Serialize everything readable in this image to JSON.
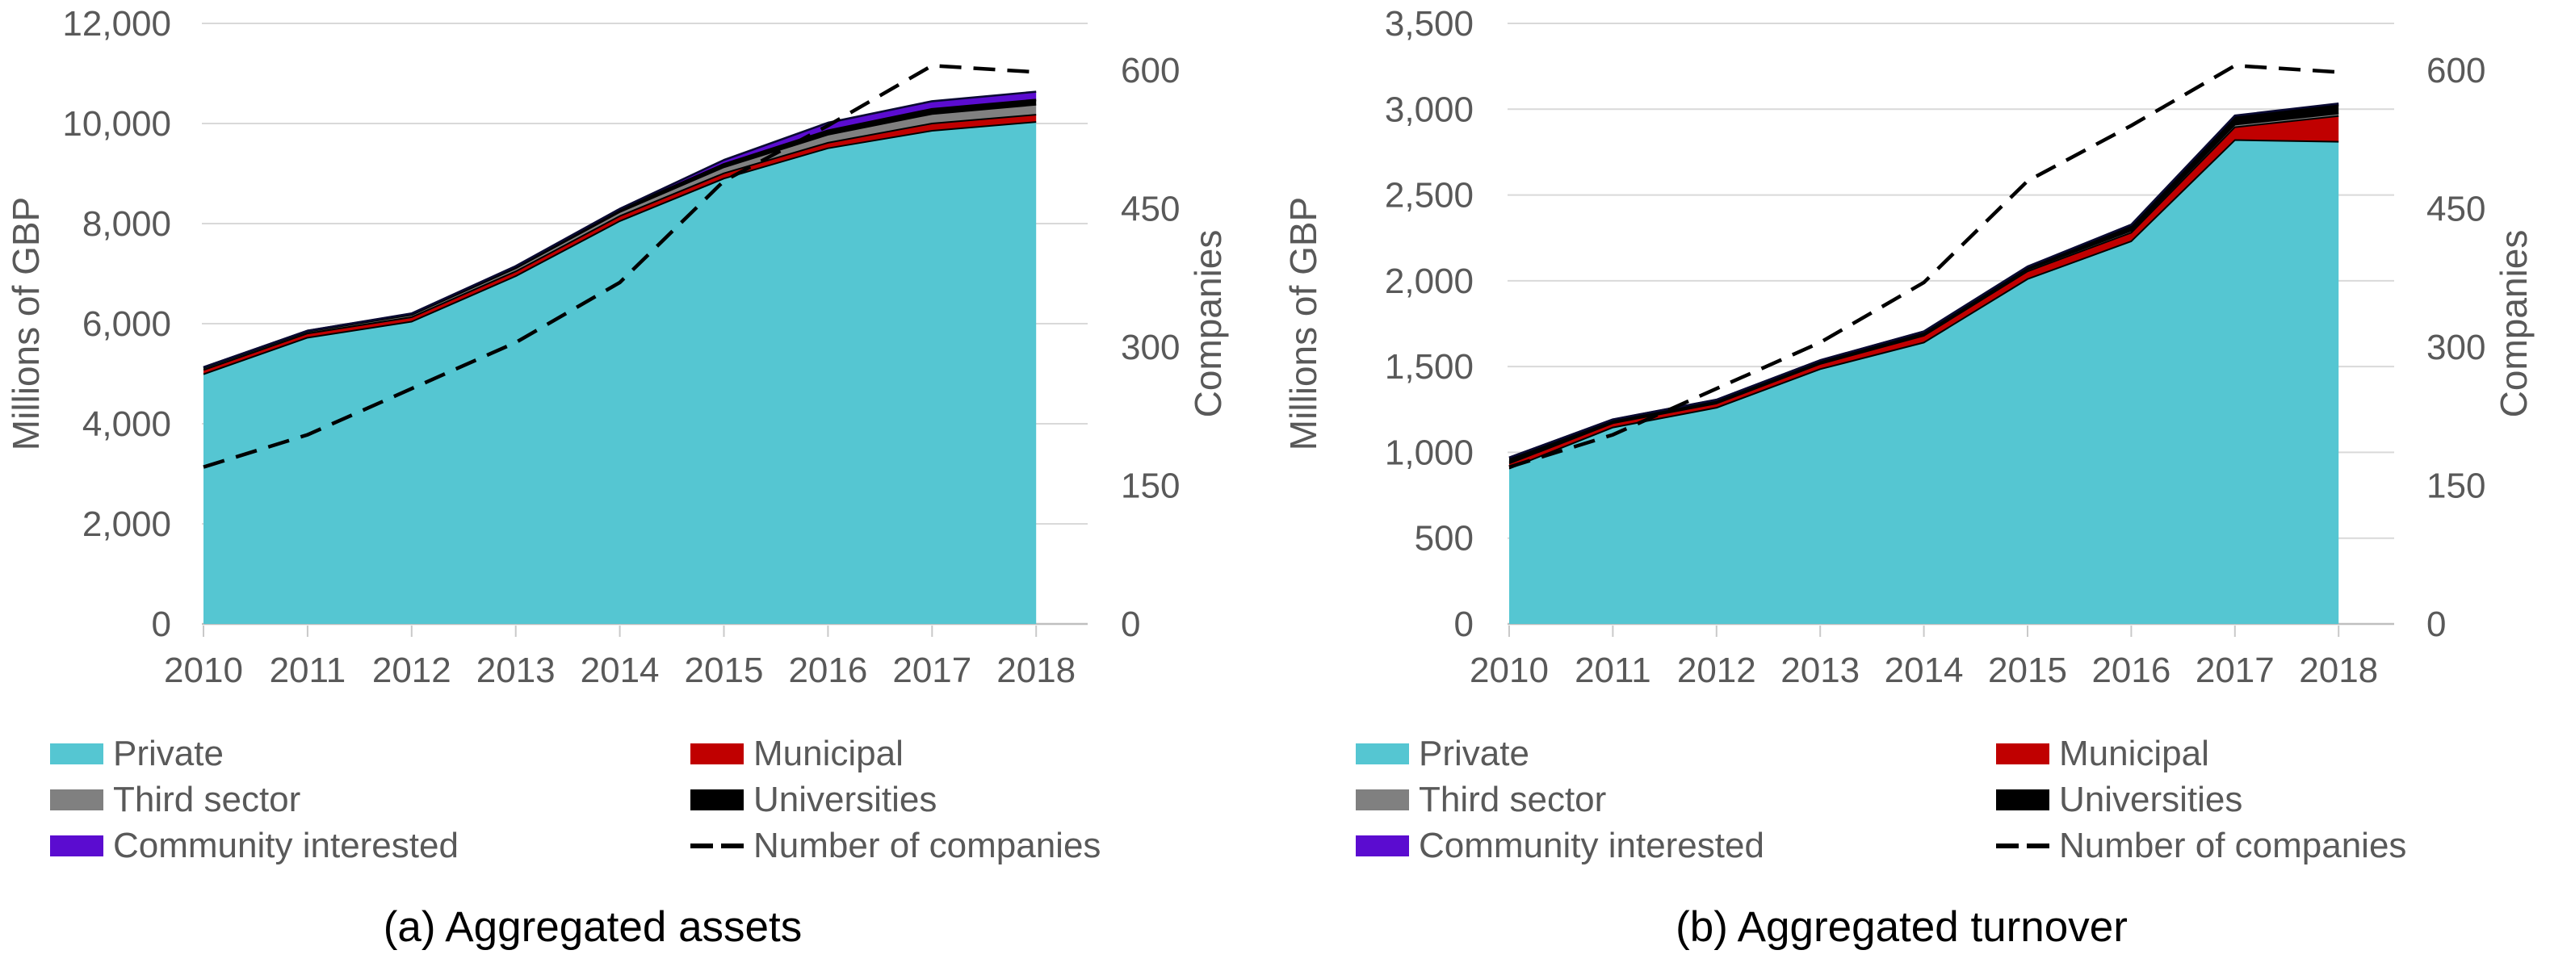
{
  "style": {
    "background_color": "#FFFFFF",
    "gridline_color": "#D9D9D9",
    "axis_line_color": "#BFBFBF",
    "tick_mark_color": "#C9C9C9",
    "tick_text_color": "#595959",
    "caption_color": "#000000",
    "companies_line_color": "#000000"
  },
  "legend": {
    "columns": [
      [
        {
          "label": "Private",
          "swatch": "fill",
          "color": "#55C6D2"
        },
        {
          "label": "Third sector",
          "swatch": "fill",
          "color": "#808080"
        },
        {
          "label": "Community interested",
          "swatch": "fill",
          "color": "#5B0CD0"
        }
      ],
      [
        {
          "label": "Municipal",
          "swatch": "fill",
          "color": "#C00000"
        },
        {
          "label": "Universities",
          "swatch": "fill",
          "color": "#000000"
        },
        {
          "label": "Number of companies",
          "swatch": "dash",
          "color": "#000000"
        }
      ]
    ]
  },
  "chart_data": [
    {
      "type": "area",
      "subtype": "stacked-area-with-secondary-line",
      "title": "(a) Aggregated assets",
      "ylabel": "Millions of GBP",
      "y2label": "Companies",
      "x": [
        2010,
        2011,
        2012,
        2013,
        2014,
        2015,
        2016,
        2017,
        2018
      ],
      "xlabels": [
        "2010",
        "2011",
        "2012",
        "2013",
        "2014",
        "2015",
        "2016",
        "2017",
        "2018"
      ],
      "ylim": [
        0,
        12000
      ],
      "y2lim": [
        0,
        650
      ],
      "grid": true,
      "legend_position": "bottom",
      "yticks": {
        "values": [
          0,
          2000,
          4000,
          6000,
          8000,
          10000,
          12000
        ],
        "labels": [
          "0",
          "2,000",
          "4,000",
          "6,000",
          "8,000",
          "10,000",
          "12,000"
        ]
      },
      "y2ticks": {
        "values": [
          0,
          150,
          300,
          450,
          600
        ],
        "labels": [
          "0",
          "150",
          "300",
          "450",
          "600"
        ]
      },
      "series": [
        {
          "name": "Private",
          "color": "#55C6D2",
          "values": [
            4990,
            5720,
            6040,
            6950,
            8050,
            8900,
            9505,
            9855,
            10030
          ]
        },
        {
          "name": "Municipal",
          "color": "#C00000",
          "values": [
            85,
            85,
            90,
            95,
            100,
            105,
            110,
            145,
            145
          ]
        },
        {
          "name": "Third sector",
          "color": "#808080",
          "values": [
            35,
            35,
            45,
            60,
            80,
            120,
            160,
            190,
            200
          ]
        },
        {
          "name": "Universities",
          "color": "#000000",
          "values": [
            15,
            15,
            20,
            30,
            40,
            60,
            80,
            95,
            95
          ]
        },
        {
          "name": "Community interested",
          "color": "#5B0CD0",
          "values": [
            5,
            5,
            10,
            15,
            25,
            85,
            160,
            160,
            165
          ]
        }
      ],
      "companies_line": {
        "name": "Number of companies",
        "axis": "y2",
        "style": "dashed",
        "values": [
          170,
          205,
          255,
          305,
          370,
          480,
          540,
          605,
          598
        ]
      }
    },
    {
      "type": "area",
      "subtype": "stacked-area-with-secondary-line",
      "title": "(b) Aggregated turnover",
      "ylabel": "Millions of GBP",
      "y2label": "Companies",
      "x": [
        2010,
        2011,
        2012,
        2013,
        2014,
        2015,
        2016,
        2017,
        2018
      ],
      "xlabels": [
        "2010",
        "2011",
        "2012",
        "2013",
        "2014",
        "2015",
        "2016",
        "2017",
        "2018"
      ],
      "ylim": [
        0,
        3500
      ],
      "y2lim": [
        0,
        650
      ],
      "grid": true,
      "legend_position": "bottom",
      "yticks": {
        "values": [
          0,
          500,
          1000,
          1500,
          2000,
          2500,
          3000,
          3500
        ],
        "labels": [
          "0",
          "500",
          "1,000",
          "1,500",
          "2,000",
          "2,500",
          "3,000",
          "3,500"
        ]
      },
      "y2ticks": {
        "values": [
          0,
          150,
          300,
          450,
          600
        ],
        "labels": [
          "0",
          "150",
          "300",
          "450",
          "600"
        ]
      },
      "series": [
        {
          "name": "Private",
          "color": "#55C6D2",
          "values": [
            905,
            1145,
            1260,
            1485,
            1640,
            2010,
            2230,
            2820,
            2810
          ]
        },
        {
          "name": "Municipal",
          "color": "#C00000",
          "values": [
            30,
            25,
            25,
            30,
            40,
            45,
            50,
            75,
            150
          ]
        },
        {
          "name": "Third sector",
          "color": "#808080",
          "values": [
            8,
            8,
            8,
            8,
            8,
            10,
            12,
            15,
            15
          ]
        },
        {
          "name": "Universities",
          "color": "#000000",
          "values": [
            25,
            12,
            12,
            12,
            15,
            15,
            30,
            45,
            50
          ]
        },
        {
          "name": "Community interested",
          "color": "#5B0CD0",
          "values": [
            2,
            2,
            2,
            2,
            2,
            3,
            5,
            8,
            8
          ]
        }
      ],
      "companies_line": {
        "name": "Number of companies",
        "axis": "y2",
        "style": "dashed",
        "values": [
          170,
          205,
          255,
          305,
          370,
          480,
          540,
          605,
          598
        ]
      }
    }
  ]
}
